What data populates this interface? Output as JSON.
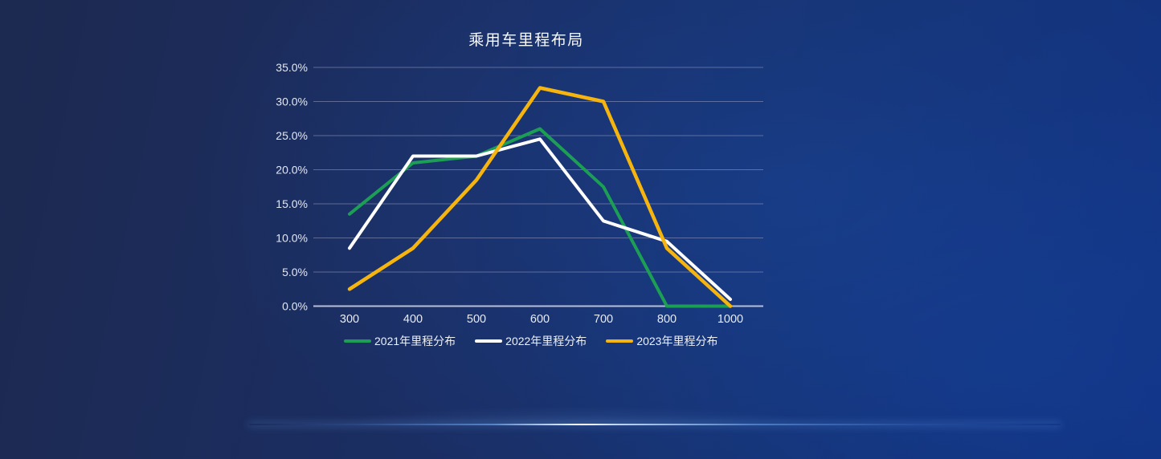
{
  "chart_data": {
    "type": "line",
    "title": "乘用车里程布局",
    "categories": [
      "300",
      "400",
      "500",
      "600",
      "700",
      "800",
      "1000"
    ],
    "xlabel": "",
    "ylabel": "",
    "ylim": [
      0,
      35
    ],
    "ytick_interval": 5,
    "yticks": [
      "0.0%",
      "5.0%",
      "10.0%",
      "15.0%",
      "20.0%",
      "25.0%",
      "30.0%",
      "35.0%"
    ],
    "grid": true,
    "legend_position": "bottom",
    "series": [
      {
        "name": "2021年里程分布",
        "color": "#1c9e54",
        "values": [
          13.5,
          21,
          22,
          26,
          17.5,
          0,
          0
        ]
      },
      {
        "name": "2022年里程分布",
        "color": "#ffffff",
        "values": [
          8.5,
          22,
          22,
          24.5,
          12.5,
          9.5,
          1
        ]
      },
      {
        "name": "2023年里程分布",
        "color": "#f6b40e",
        "values": [
          2.5,
          8.5,
          18.5,
          32,
          30,
          8.5,
          0
        ]
      }
    ]
  },
  "colors": {
    "grid_line": "rgba(162, 166, 198, 0.5)",
    "axis_line": "#b9bed3",
    "tick_label": "#e3e7f2",
    "title": "#f7f9fd",
    "background_left": "#1c2950",
    "background_right": "#11317f",
    "divider_glow": "#cfe8ff"
  }
}
